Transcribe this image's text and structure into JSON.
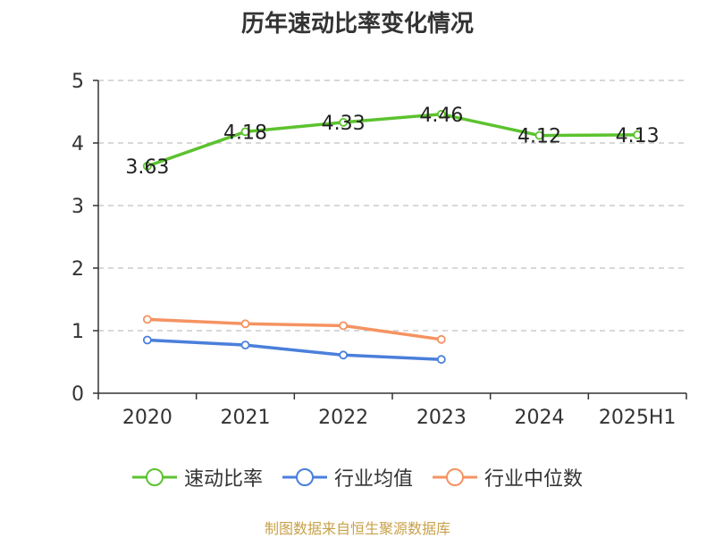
{
  "chart_data": {
    "type": "line",
    "title": "历年速动比率变化情况",
    "categories": [
      "2020",
      "2021",
      "2022",
      "2023",
      "2024",
      "2025H1"
    ],
    "ylim": [
      0,
      5
    ],
    "yticks": [
      "0",
      "1",
      "2",
      "3",
      "4",
      "5"
    ],
    "grid": true,
    "legend_position": "bottom",
    "series": [
      {
        "name": "速动比率",
        "color": "#5cc22f",
        "values": [
          3.63,
          4.18,
          4.33,
          4.46,
          4.12,
          4.13
        ],
        "labels": [
          "3.63",
          "4.18",
          "4.33",
          "4.46",
          "4.12",
          "4.13"
        ]
      },
      {
        "name": "行业均值",
        "color": "#4a7fdb",
        "values": [
          0.85,
          0.77,
          0.61,
          0.54,
          null,
          null
        ]
      },
      {
        "name": "行业中位数",
        "color": "#f59361",
        "values": [
          1.18,
          1.11,
          1.08,
          0.86,
          null,
          null
        ]
      }
    ]
  },
  "source": "制图数据来自恒生聚源数据库"
}
